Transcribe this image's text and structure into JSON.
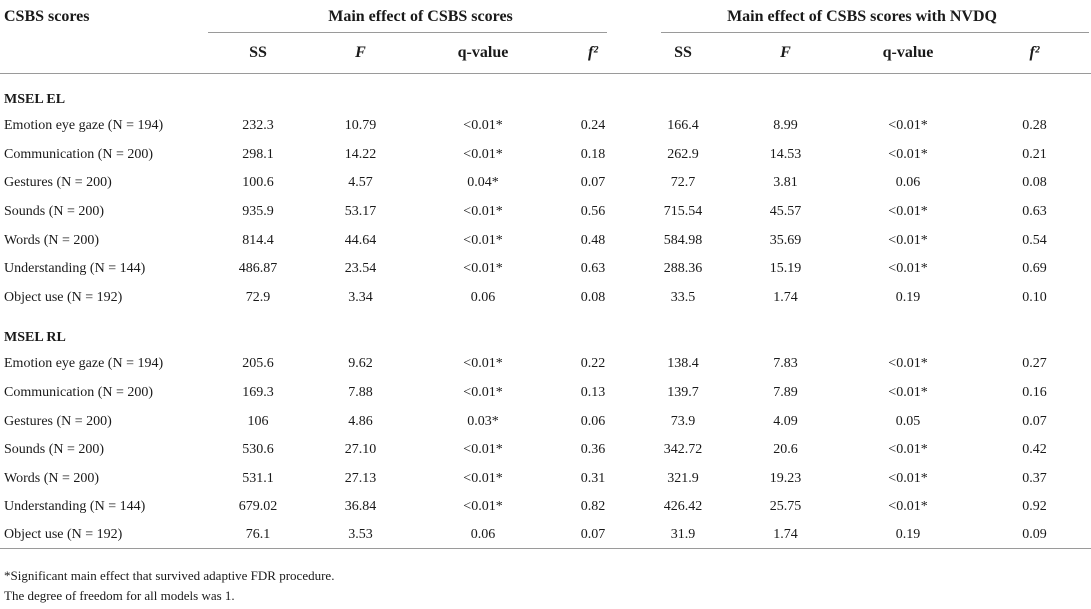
{
  "headers": {
    "row_label": "CSBS scores",
    "group1": "Main effect of CSBS scores",
    "group2": "Main effect of CSBS scores with NVDQ",
    "columns": [
      "SS",
      "F",
      "q-value",
      "f²",
      "SS",
      "F",
      "q-value",
      "f²"
    ]
  },
  "sections": [
    {
      "title": "MSEL EL",
      "rows": [
        {
          "label": "Emotion eye gaze (N = 194)",
          "cells": [
            "232.3",
            "10.79",
            "<0.01*",
            "0.24",
            "166.4",
            "8.99",
            "<0.01*",
            "0.28"
          ]
        },
        {
          "label": "Communication (N = 200)",
          "cells": [
            "298.1",
            "14.22",
            "<0.01*",
            "0.18",
            "262.9",
            "14.53",
            "<0.01*",
            "0.21"
          ]
        },
        {
          "label": "Gestures (N = 200)",
          "cells": [
            "100.6",
            "4.57",
            "0.04*",
            "0.07",
            "72.7",
            "3.81",
            "0.06",
            "0.08"
          ]
        },
        {
          "label": "Sounds (N = 200)",
          "cells": [
            "935.9",
            "53.17",
            "<0.01*",
            "0.56",
            "715.54",
            "45.57",
            "<0.01*",
            "0.63"
          ]
        },
        {
          "label": "Words (N = 200)",
          "cells": [
            "814.4",
            "44.64",
            "<0.01*",
            "0.48",
            "584.98",
            "35.69",
            "<0.01*",
            "0.54"
          ]
        },
        {
          "label": "Understanding (N = 144)",
          "cells": [
            "486.87",
            "23.54",
            "<0.01*",
            "0.63",
            "288.36",
            "15.19",
            "<0.01*",
            "0.69"
          ]
        },
        {
          "label": "Object use (N = 192)",
          "cells": [
            "72.9",
            "3.34",
            "0.06",
            "0.08",
            "33.5",
            "1.74",
            "0.19",
            "0.10"
          ]
        }
      ]
    },
    {
      "title": "MSEL RL",
      "rows": [
        {
          "label": "Emotion eye gaze (N = 194)",
          "cells": [
            "205.6",
            "9.62",
            "<0.01*",
            "0.22",
            "138.4",
            "7.83",
            "<0.01*",
            "0.27"
          ]
        },
        {
          "label": "Communication (N = 200)",
          "cells": [
            "169.3",
            "7.88",
            "<0.01*",
            "0.13",
            "139.7",
            "7.89",
            "<0.01*",
            "0.16"
          ]
        },
        {
          "label": "Gestures (N = 200)",
          "cells": [
            "106",
            "4.86",
            "0.03*",
            "0.06",
            "73.9",
            "4.09",
            "0.05",
            "0.07"
          ]
        },
        {
          "label": "Sounds (N = 200)",
          "cells": [
            "530.6",
            "27.10",
            "<0.01*",
            "0.36",
            "342.72",
            "20.6",
            "<0.01*",
            "0.42"
          ]
        },
        {
          "label": "Words (N = 200)",
          "cells": [
            "531.1",
            "27.13",
            "<0.01*",
            "0.31",
            "321.9",
            "19.23",
            "<0.01*",
            "0.37"
          ]
        },
        {
          "label": "Understanding (N = 144)",
          "cells": [
            "679.02",
            "36.84",
            "<0.01*",
            "0.82",
            "426.42",
            "25.75",
            "<0.01*",
            "0.92"
          ]
        },
        {
          "label": "Object use (N = 192)",
          "cells": [
            "76.1",
            "3.53",
            "0.06",
            "0.07",
            "31.9",
            "1.74",
            "0.19",
            "0.09"
          ]
        }
      ]
    }
  ],
  "footnotes": [
    "*Significant main effect that survived adaptive FDR procedure.",
    "The degree of freedom for all models was 1."
  ]
}
